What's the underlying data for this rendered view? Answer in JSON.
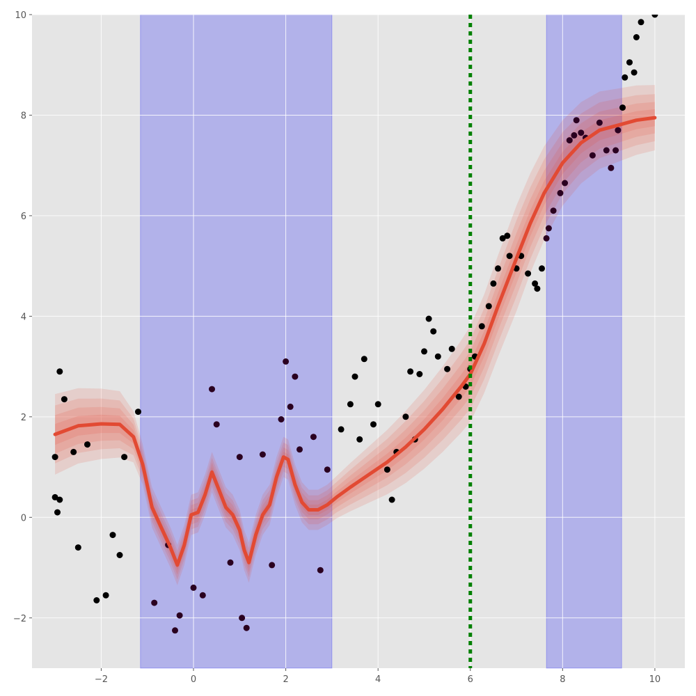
{
  "chart_data": {
    "type": "scatter",
    "title": "",
    "xlabel": "",
    "ylabel": "",
    "xlim": [
      -3.5,
      10.65
    ],
    "ylim": [
      -3,
      10
    ],
    "x_ticks": [
      -2,
      0,
      2,
      4,
      6,
      8,
      10
    ],
    "x_tick_labels": [
      "−2",
      "0",
      "2",
      "4",
      "6",
      "8",
      "10"
    ],
    "y_ticks": [
      -2,
      0,
      2,
      4,
      6,
      8,
      10
    ],
    "y_tick_labels": [
      "−2",
      "0",
      "2",
      "4",
      "6",
      "8",
      "10"
    ],
    "grid": true,
    "legend": "none",
    "background_color": "#e5e5e5",
    "shaded_regions": [
      {
        "x_start": -1.15,
        "x_end": 3.0,
        "color": "#0000ff",
        "alpha": 0.22
      },
      {
        "x_start": 7.65,
        "x_end": 9.28,
        "color": "#0000ff",
        "alpha": 0.22
      }
    ],
    "vertical_line": {
      "x": 6.0,
      "color": "#008000",
      "style": "dotted"
    },
    "mean_curve": {
      "color": "#e24a33",
      "x": [
        -3.0,
        -2.5,
        -2.0,
        -1.6,
        -1.3,
        -1.1,
        -0.9,
        -0.7,
        -0.5,
        -0.35,
        -0.2,
        -0.05,
        0.1,
        0.25,
        0.4,
        0.55,
        0.7,
        0.85,
        1.0,
        1.1,
        1.2,
        1.35,
        1.5,
        1.65,
        1.8,
        1.95,
        2.05,
        2.2,
        2.35,
        2.5,
        2.7,
        2.9,
        3.1,
        3.4,
        3.8,
        4.2,
        4.6,
        5.0,
        5.4,
        5.8,
        6.0,
        6.3,
        6.6,
        7.0,
        7.3,
        7.6,
        8.0,
        8.4,
        8.8,
        9.2,
        9.6,
        10.0
      ],
      "y": [
        1.65,
        1.82,
        1.86,
        1.85,
        1.6,
        1.05,
        0.2,
        -0.2,
        -0.6,
        -0.95,
        -0.55,
        0.05,
        0.1,
        0.45,
        0.9,
        0.55,
        0.2,
        0.05,
        -0.25,
        -0.65,
        -0.9,
        -0.35,
        0.05,
        0.25,
        0.8,
        1.2,
        1.15,
        0.65,
        0.3,
        0.15,
        0.15,
        0.25,
        0.4,
        0.6,
        0.85,
        1.1,
        1.4,
        1.75,
        2.15,
        2.6,
        2.85,
        3.45,
        4.2,
        5.15,
        5.85,
        6.45,
        7.05,
        7.45,
        7.7,
        7.8,
        7.9,
        7.95
      ]
    },
    "confidence_bands": [
      {
        "half_width_scale": 1.0,
        "alpha": 0.15
      },
      {
        "half_width_scale": 0.72,
        "alpha": 0.15
      },
      {
        "half_width_scale": 0.48,
        "alpha": 0.15
      },
      {
        "half_width_scale": 0.26,
        "alpha": 0.15
      }
    ],
    "band_half_width": {
      "x": [
        -3.0,
        -1.5,
        -1.15,
        3.0,
        4.5,
        6.0,
        7.0,
        8.0,
        10.0
      ],
      "y": [
        0.8,
        0.65,
        0.4,
        0.4,
        0.7,
        0.95,
        1.05,
        0.85,
        0.65
      ]
    },
    "points": [
      [
        -2.9,
        2.9
      ],
      [
        -3.0,
        1.2
      ],
      [
        -3.0,
        0.4
      ],
      [
        -2.95,
        0.1
      ],
      [
        -2.9,
        0.35
      ],
      [
        -2.8,
        2.35
      ],
      [
        -2.6,
        1.3
      ],
      [
        -2.5,
        -0.6
      ],
      [
        -2.3,
        1.45
      ],
      [
        -2.1,
        -1.65
      ],
      [
        -1.9,
        -1.55
      ],
      [
        -1.75,
        -0.35
      ],
      [
        -1.6,
        -0.75
      ],
      [
        -1.5,
        1.2
      ],
      [
        -1.2,
        2.1
      ],
      [
        -0.85,
        -1.7
      ],
      [
        -0.55,
        -0.55
      ],
      [
        -0.4,
        -2.25
      ],
      [
        -0.3,
        -1.95
      ],
      [
        0.0,
        -1.4
      ],
      [
        0.2,
        -1.55
      ],
      [
        0.4,
        2.55
      ],
      [
        0.5,
        1.85
      ],
      [
        0.8,
        -0.9
      ],
      [
        1.0,
        1.2
      ],
      [
        1.05,
        -2.0
      ],
      [
        1.15,
        -2.2
      ],
      [
        1.5,
        1.25
      ],
      [
        1.7,
        -0.95
      ],
      [
        1.9,
        1.95
      ],
      [
        2.0,
        3.1
      ],
      [
        2.1,
        2.2
      ],
      [
        2.2,
        2.8
      ],
      [
        2.3,
        1.35
      ],
      [
        2.6,
        1.6
      ],
      [
        2.75,
        -1.05
      ],
      [
        2.9,
        0.95
      ],
      [
        3.2,
        1.75
      ],
      [
        3.4,
        2.25
      ],
      [
        3.5,
        2.8
      ],
      [
        3.6,
        1.55
      ],
      [
        3.7,
        3.15
      ],
      [
        3.9,
        1.85
      ],
      [
        4.0,
        2.25
      ],
      [
        4.2,
        0.95
      ],
      [
        4.3,
        0.35
      ],
      [
        4.4,
        1.3
      ],
      [
        4.6,
        2.0
      ],
      [
        4.7,
        2.9
      ],
      [
        4.8,
        1.55
      ],
      [
        4.9,
        2.85
      ],
      [
        5.0,
        3.3
      ],
      [
        5.1,
        3.95
      ],
      [
        5.2,
        3.7
      ],
      [
        5.3,
        3.2
      ],
      [
        5.5,
        2.95
      ],
      [
        5.6,
        3.35
      ],
      [
        5.75,
        2.4
      ],
      [
        5.9,
        2.6
      ],
      [
        6.0,
        2.95
      ],
      [
        6.1,
        3.2
      ],
      [
        6.25,
        3.8
      ],
      [
        6.4,
        4.2
      ],
      [
        6.5,
        4.65
      ],
      [
        6.6,
        4.95
      ],
      [
        6.7,
        5.55
      ],
      [
        6.8,
        5.6
      ],
      [
        6.85,
        5.2
      ],
      [
        7.0,
        4.95
      ],
      [
        7.1,
        5.2
      ],
      [
        7.25,
        4.85
      ],
      [
        7.4,
        4.65
      ],
      [
        7.45,
        4.55
      ],
      [
        7.55,
        4.95
      ],
      [
        7.65,
        5.55
      ],
      [
        7.7,
        5.75
      ],
      [
        7.8,
        6.1
      ],
      [
        7.95,
        6.45
      ],
      [
        8.05,
        6.65
      ],
      [
        8.15,
        7.5
      ],
      [
        8.25,
        7.6
      ],
      [
        8.3,
        7.9
      ],
      [
        8.4,
        7.65
      ],
      [
        8.5,
        7.55
      ],
      [
        8.65,
        7.2
      ],
      [
        8.8,
        7.85
      ],
      [
        8.95,
        7.3
      ],
      [
        9.05,
        6.95
      ],
      [
        9.15,
        7.3
      ],
      [
        9.2,
        7.7
      ],
      [
        9.3,
        8.15
      ],
      [
        9.35,
        8.75
      ],
      [
        9.45,
        9.05
      ],
      [
        9.55,
        8.85
      ],
      [
        9.6,
        9.55
      ],
      [
        9.7,
        9.85
      ],
      [
        10.0,
        10.0
      ]
    ],
    "point_colors": {
      "outside_color": "#000000",
      "inside_color": "#2a0020"
    }
  }
}
